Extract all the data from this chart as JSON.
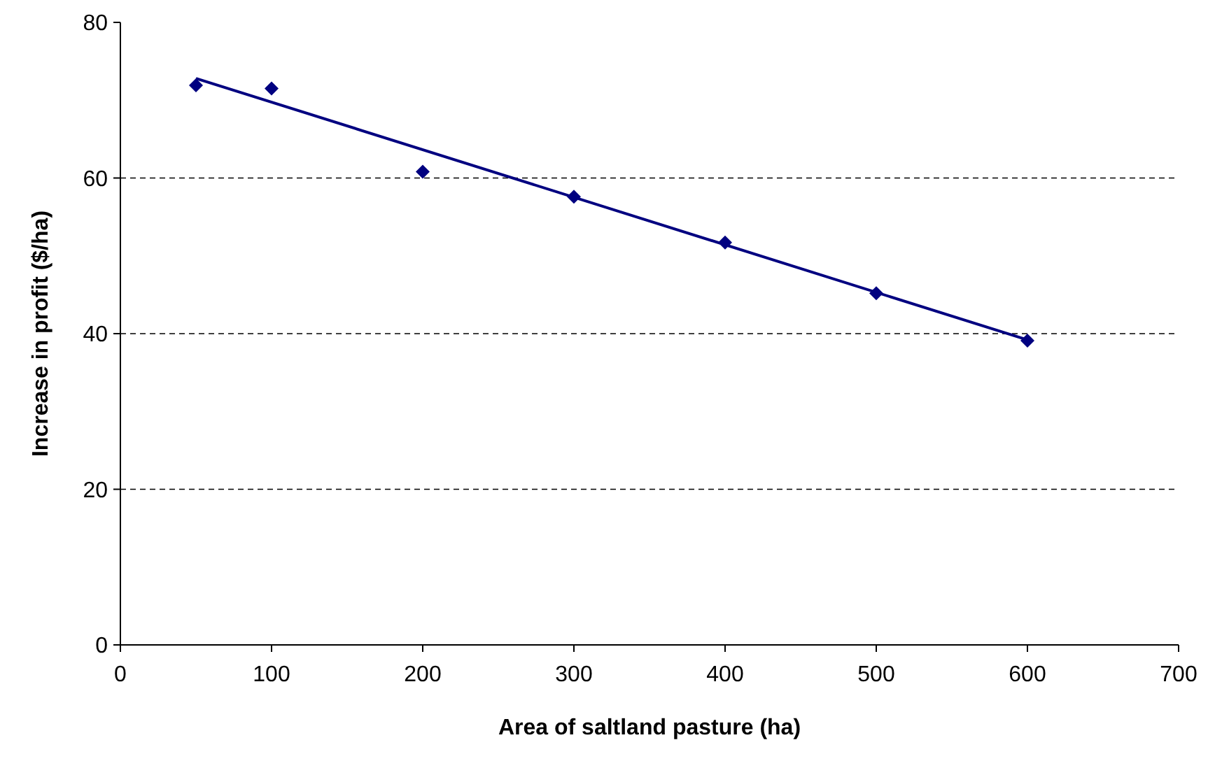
{
  "chart_data": {
    "type": "scatter",
    "xlabel": "Area of saltland pasture (ha)",
    "ylabel": "Increase in profit ($/ha)",
    "xlim": [
      0,
      700
    ],
    "xticks": [
      0,
      100,
      200,
      300,
      400,
      500,
      600,
      700
    ],
    "ylim": [
      0,
      80
    ],
    "yticks": [
      0,
      20,
      40,
      60,
      80
    ],
    "grid": "y",
    "marker": "diamond",
    "series": [
      {
        "color": "#000080",
        "x": [
          50,
          100,
          200,
          300,
          400,
          500,
          600
        ],
        "values": [
          71.9,
          71.5,
          60.8,
          57.6,
          51.7,
          45.2,
          39.1
        ]
      },
      {
        "type": "line",
        "color": "#000080",
        "x": [
          50,
          600
        ],
        "values": [
          72.8,
          39.2
        ],
        "marker": "none",
        "line_style": "solid"
      }
    ]
  }
}
